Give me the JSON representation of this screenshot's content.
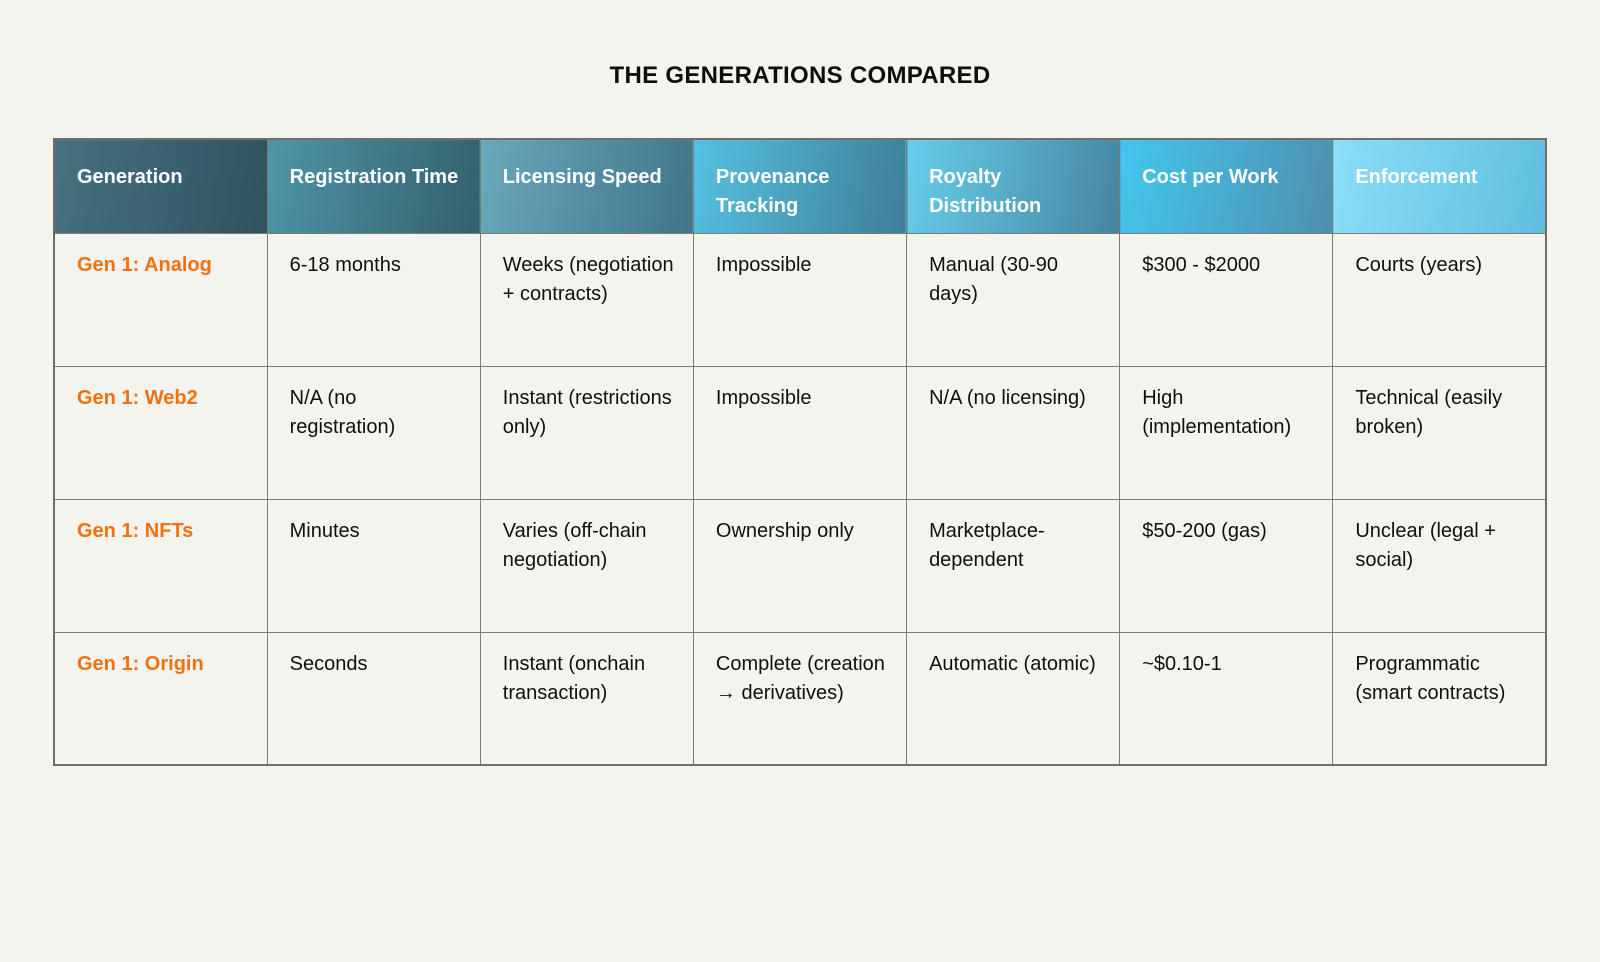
{
  "chart_data": {
    "type": "table",
    "title": "THE GENERATIONS COMPARED",
    "columns": [
      "Generation",
      "Registration Time",
      "Licensing Speed",
      "Provenance Tracking",
      "Royalty Distribution",
      "Cost per Work",
      "Enforcement"
    ],
    "rows": [
      [
        "Gen 1: Analog",
        "6-18 months",
        "Weeks (negotiation + contracts)",
        "Impossible",
        "Manual (30-90 days)",
        "$300 - $2000",
        "Courts (years)"
      ],
      [
        "Gen 1: Web2",
        "N/A (no registration)",
        "Instant (restrictions only)",
        "Impossible",
        "N/A (no licensing)",
        "High (implementation)",
        "Technical (easily broken)"
      ],
      [
        "Gen 1: NFTs",
        "Minutes",
        "Varies (off-chain negotiation)",
        "Ownership only",
        "Marketplace-dependent",
        "$50-200 (gas)",
        "Unclear (legal + social)"
      ],
      [
        "Gen 1: Origin",
        "Seconds",
        "Instant (onchain transaction)",
        "Complete (creation → derivatives)",
        "Automatic (atomic)",
        "~$0.10-1",
        "Programmatic (smart contracts)"
      ]
    ]
  },
  "style": {
    "background_color": "#F4F4EE",
    "cell_background_color": "#F4F4EF",
    "body_text_color": "#0F0F0F",
    "accent_orange": "#F4700F",
    "header_text_color": "#FFFFFF",
    "border_color": "#7C7B74",
    "outer_border_color": "#6E6D67",
    "header_gradients": [
      [
        "#46717F",
        "#2F535F"
      ],
      [
        "#4F95A8",
        "#33606C"
      ],
      [
        "#69A8BC",
        "#417589"
      ],
      [
        "#55C1E1",
        "#3E7E97"
      ],
      [
        "#67CDEA",
        "#4585A1"
      ],
      [
        "#43C6EF",
        "#4E8FAD"
      ],
      [
        "#8BDEF7",
        "#5FBFDD"
      ]
    ]
  }
}
